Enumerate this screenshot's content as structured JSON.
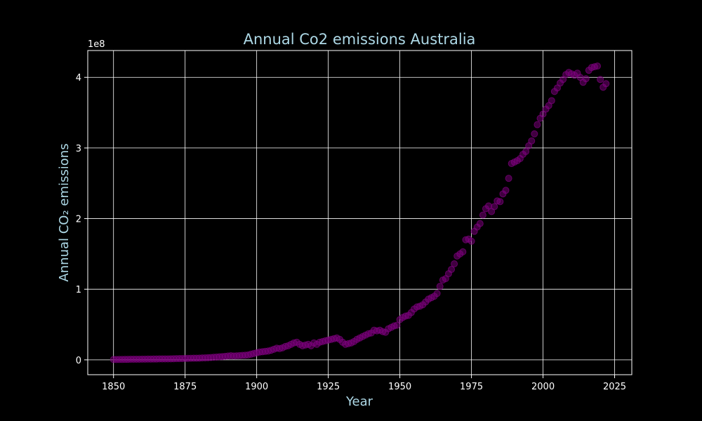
{
  "chart_data": {
    "type": "scatter",
    "title": "Annual Co2 emissions Australia",
    "xlabel": "Year",
    "ylabel": "Annual CO₂ emissions",
    "y_offset_text": "1e8",
    "xlim": [
      1841,
      2031
    ],
    "ylim": [
      -0.21,
      4.38
    ],
    "y_unit_multiplier": 100000000,
    "x_ticks": [
      1850,
      1875,
      1900,
      1925,
      1950,
      1975,
      2000,
      2025
    ],
    "y_ticks": [
      0,
      1,
      2,
      3,
      4
    ],
    "grid": true,
    "marker_color": "#800080",
    "background": "#000000",
    "accent_color": "#add8e6",
    "series": [
      {
        "x": [
          1850,
          1851,
          1852,
          1853,
          1854,
          1855,
          1856,
          1857,
          1858,
          1859,
          1860,
          1861,
          1862,
          1863,
          1864,
          1865,
          1866,
          1867,
          1868,
          1869,
          1870,
          1871,
          1872,
          1873,
          1874,
          1875,
          1876,
          1877,
          1878,
          1879,
          1880,
          1881,
          1882,
          1883,
          1884,
          1885,
          1886,
          1887,
          1888,
          1889,
          1890,
          1891,
          1892,
          1893,
          1894,
          1895,
          1896,
          1897,
          1898,
          1899,
          1900,
          1901,
          1902,
          1903,
          1904,
          1905,
          1906,
          1907,
          1908,
          1909,
          1910,
          1911,
          1912,
          1913,
          1914,
          1915,
          1916,
          1917,
          1918,
          1919,
          1920,
          1921,
          1922,
          1923,
          1924,
          1925,
          1926,
          1927,
          1928,
          1929,
          1930,
          1931,
          1932,
          1933,
          1934,
          1935,
          1936,
          1937,
          1938,
          1939,
          1940,
          1941,
          1942,
          1943,
          1944,
          1945,
          1946,
          1947,
          1948,
          1949,
          1950,
          1951,
          1952,
          1953,
          1954,
          1955,
          1956,
          1957,
          1958,
          1959,
          1960,
          1961,
          1962,
          1963,
          1964,
          1965,
          1966,
          1967,
          1968,
          1969,
          1970,
          1971,
          1972,
          1973,
          1974,
          1975,
          1976,
          1977,
          1978,
          1979,
          1980,
          1981,
          1982,
          1983,
          1984,
          1985,
          1986,
          1987,
          1988,
          1989,
          1990,
          1991,
          1992,
          1993,
          1994,
          1995,
          1996,
          1997,
          1998,
          1999,
          2000,
          2001,
          2002,
          2003,
          2004,
          2005,
          2006,
          2007,
          2008,
          2009,
          2010,
          2011,
          2012,
          2013,
          2014,
          2015,
          2016,
          2017,
          2018,
          2019,
          2020,
          2021,
          2022
        ],
        "y": [
          0.005,
          0.005,
          0.006,
          0.006,
          0.007,
          0.007,
          0.008,
          0.008,
          0.009,
          0.009,
          0.01,
          0.01,
          0.011,
          0.011,
          0.012,
          0.012,
          0.013,
          0.013,
          0.014,
          0.014,
          0.015,
          0.016,
          0.017,
          0.018,
          0.019,
          0.02,
          0.021,
          0.022,
          0.023,
          0.024,
          0.025,
          0.027,
          0.029,
          0.031,
          0.034,
          0.037,
          0.04,
          0.043,
          0.046,
          0.05,
          0.055,
          0.058,
          0.055,
          0.057,
          0.06,
          0.063,
          0.066,
          0.07,
          0.08,
          0.09,
          0.1,
          0.11,
          0.115,
          0.12,
          0.125,
          0.135,
          0.15,
          0.165,
          0.16,
          0.17,
          0.19,
          0.2,
          0.22,
          0.24,
          0.25,
          0.22,
          0.2,
          0.21,
          0.22,
          0.2,
          0.24,
          0.22,
          0.25,
          0.26,
          0.27,
          0.28,
          0.29,
          0.3,
          0.31,
          0.29,
          0.25,
          0.22,
          0.23,
          0.24,
          0.26,
          0.29,
          0.31,
          0.33,
          0.35,
          0.37,
          0.38,
          0.42,
          0.41,
          0.42,
          0.4,
          0.39,
          0.44,
          0.46,
          0.48,
          0.49,
          0.57,
          0.6,
          0.62,
          0.63,
          0.67,
          0.72,
          0.75,
          0.76,
          0.78,
          0.82,
          0.86,
          0.88,
          0.9,
          0.94,
          1.04,
          1.13,
          1.15,
          1.22,
          1.28,
          1.36,
          1.47,
          1.5,
          1.53,
          1.7,
          1.71,
          1.68,
          1.82,
          1.88,
          1.93,
          2.05,
          2.14,
          2.18,
          2.1,
          2.17,
          2.25,
          2.24,
          2.35,
          2.4,
          2.57,
          2.78,
          2.8,
          2.82,
          2.85,
          2.91,
          2.95,
          3.03,
          3.1,
          3.2,
          3.33,
          3.42,
          3.48,
          3.55,
          3.6,
          3.67,
          3.8,
          3.85,
          3.92,
          3.97,
          4.04,
          4.07,
          4.05,
          4.03,
          4.06,
          4.0,
          3.93,
          3.98,
          4.1,
          4.14,
          4.15,
          4.16,
          3.97,
          3.86,
          3.91
        ]
      }
    ]
  }
}
